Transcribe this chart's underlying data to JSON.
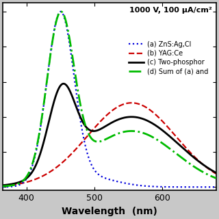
{
  "title": "1000 V, 100 μA/cm²",
  "xlabel": "Wavelength  (nm)",
  "xlim": [
    365,
    680
  ],
  "ylim": [
    -0.02,
    1.05
  ],
  "xticks": [
    400,
    500,
    600
  ],
  "legend": [
    {
      "label": "(a) ZnS:Ag,Cl",
      "color": "#0000dd",
      "linestyle": "dotted",
      "lw": 1.6
    },
    {
      "label": "(b) YAG:Ce",
      "color": "#cc0000",
      "linestyle": "dashed",
      "lw": 1.6
    },
    {
      "label": "(c) Two-phosphor",
      "color": "#000000",
      "linestyle": "solid",
      "lw": 2.0
    },
    {
      "label": "(d) Sum of (a) and",
      "color": "#00bb00",
      "linestyle": "dashdot",
      "lw": 2.0
    }
  ],
  "outer_bg": "#c8c8c8",
  "plot_bg": "#ffffff",
  "title_fontsize": 8,
  "legend_fontsize": 7,
  "xlabel_fontsize": 10
}
